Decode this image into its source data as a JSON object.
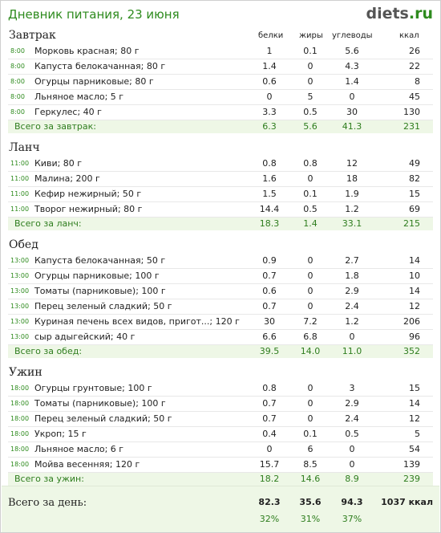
{
  "header": {
    "title": "Дневник питания, 23 июня",
    "logo_main": "diets",
    "logo_tld": ".ru"
  },
  "columns": {
    "protein": "белки",
    "fat": "жиры",
    "carbs": "углеводы",
    "kcal": "ккал"
  },
  "meals": [
    {
      "name": "Завтрак",
      "items": [
        {
          "time": "8:00",
          "food": "Морковь красная; 80 г",
          "p": "1",
          "f": "0.1",
          "c": "5.6",
          "k": "26"
        },
        {
          "time": "8:00",
          "food": "Капуста белокачанная; 80 г",
          "p": "1.4",
          "f": "0",
          "c": "4.3",
          "k": "22"
        },
        {
          "time": "8:00",
          "food": "Огурцы парниковые; 80 г",
          "p": "0.6",
          "f": "0",
          "c": "1.4",
          "k": "8"
        },
        {
          "time": "8:00",
          "food": "Льняное масло; 5 г",
          "p": "0",
          "f": "5",
          "c": "0",
          "k": "45"
        },
        {
          "time": "8:00",
          "food": "Геркулес; 40 г",
          "p": "3.3",
          "f": "0.5",
          "c": "30",
          "k": "130"
        }
      ],
      "total": {
        "label": "Всего за завтрак:",
        "p": "6.3",
        "f": "5.6",
        "c": "41.3",
        "k": "231"
      }
    },
    {
      "name": "Ланч",
      "items": [
        {
          "time": "11:00",
          "food": "Киви; 80 г",
          "p": "0.8",
          "f": "0.8",
          "c": "12",
          "k": "49"
        },
        {
          "time": "11:00",
          "food": "Малина; 200 г",
          "p": "1.6",
          "f": "0",
          "c": "18",
          "k": "82"
        },
        {
          "time": "11:00",
          "food": "Кефир нежирный; 50 г",
          "p": "1.5",
          "f": "0.1",
          "c": "1.9",
          "k": "15"
        },
        {
          "time": "11:00",
          "food": "Творог нежирный; 80 г",
          "p": "14.4",
          "f": "0.5",
          "c": "1.2",
          "k": "69"
        }
      ],
      "total": {
        "label": "Всего за ланч:",
        "p": "18.3",
        "f": "1.4",
        "c": "33.1",
        "k": "215"
      }
    },
    {
      "name": "Обед",
      "items": [
        {
          "time": "13:00",
          "food": "Капуста белокачанная; 50 г",
          "p": "0.9",
          "f": "0",
          "c": "2.7",
          "k": "14"
        },
        {
          "time": "13:00",
          "food": "Огурцы парниковые; 100 г",
          "p": "0.7",
          "f": "0",
          "c": "1.8",
          "k": "10"
        },
        {
          "time": "13:00",
          "food": "Томаты (парниковые); 100 г",
          "p": "0.6",
          "f": "0",
          "c": "2.9",
          "k": "14"
        },
        {
          "time": "13:00",
          "food": "Перец зеленый сладкий; 50 г",
          "p": "0.7",
          "f": "0",
          "c": "2.4",
          "k": "12"
        },
        {
          "time": "13:00",
          "food": "Куриная печень всех видов, пригот...; 120 г",
          "p": "30",
          "f": "7.2",
          "c": "1.2",
          "k": "206"
        },
        {
          "time": "13:00",
          "food": "сыр адыгейский; 40 г",
          "p": "6.6",
          "f": "6.8",
          "c": "0",
          "k": "96"
        }
      ],
      "total": {
        "label": "Всего за обед:",
        "p": "39.5",
        "f": "14.0",
        "c": "11.0",
        "k": "352"
      }
    },
    {
      "name": "Ужин",
      "items": [
        {
          "time": "18:00",
          "food": "Огурцы грунтовые; 100 г",
          "p": "0.8",
          "f": "0",
          "c": "3",
          "k": "15"
        },
        {
          "time": "18:00",
          "food": "Томаты (парниковые); 100 г",
          "p": "0.7",
          "f": "0",
          "c": "2.9",
          "k": "14"
        },
        {
          "time": "18:00",
          "food": "Перец зеленый сладкий; 50 г",
          "p": "0.7",
          "f": "0",
          "c": "2.4",
          "k": "12"
        },
        {
          "time": "18:00",
          "food": "Укроп; 15 г",
          "p": "0.4",
          "f": "0.1",
          "c": "0.5",
          "k": "5"
        },
        {
          "time": "18:00",
          "food": "Льняное масло; 6 г",
          "p": "0",
          "f": "6",
          "c": "0",
          "k": "54"
        },
        {
          "time": "18:00",
          "food": "Мойва весенняя; 120 г",
          "p": "15.7",
          "f": "8.5",
          "c": "0",
          "k": "139"
        }
      ],
      "total": {
        "label": "Всего за ужин:",
        "p": "18.2",
        "f": "14.6",
        "c": "8.9",
        "k": "239"
      }
    }
  ],
  "day_total": {
    "label": "Всего за день:",
    "p": "82.3",
    "f": "35.6",
    "c": "94.3",
    "kcal": "1037 ккал",
    "p_pct": "32%",
    "f_pct": "31%",
    "c_pct": "37%"
  },
  "colors": {
    "accent": "#2e8b1e",
    "total_bg": "#eef7e6"
  }
}
